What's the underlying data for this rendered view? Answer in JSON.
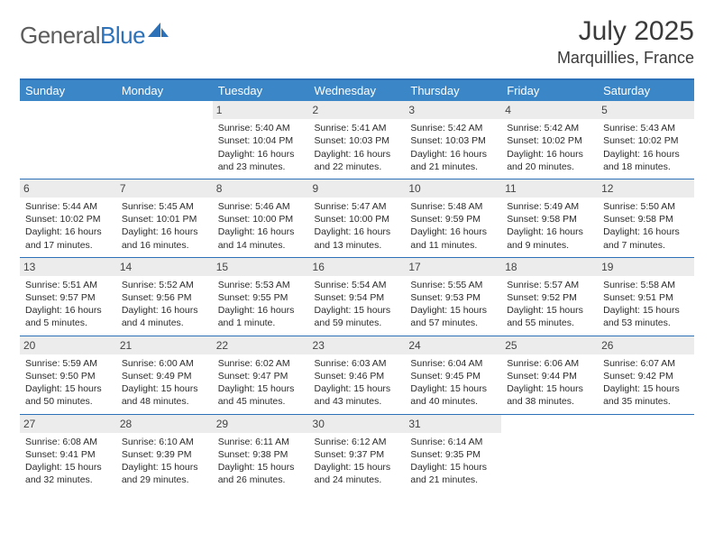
{
  "logo": {
    "text_gray": "General",
    "text_blue": "Blue"
  },
  "title": "July 2025",
  "location": "Marquillies, France",
  "colors": {
    "header_bg": "#3b86c7",
    "header_text": "#ffffff",
    "rule": "#2d72b8",
    "daynum_bg": "#ececec",
    "body_text": "#2b2b2b",
    "logo_gray": "#5c5c5c",
    "logo_blue": "#2d72b8"
  },
  "typography": {
    "title_fontsize": 30,
    "location_fontsize": 18,
    "weekday_fontsize": 13,
    "daynum_fontsize": 12,
    "cell_fontsize": 10.5,
    "font_family": "Arial"
  },
  "weekdays": [
    "Sunday",
    "Monday",
    "Tuesday",
    "Wednesday",
    "Thursday",
    "Friday",
    "Saturday"
  ],
  "weeks": [
    [
      null,
      null,
      {
        "n": "1",
        "sr": "Sunrise: 5:40 AM",
        "ss": "Sunset: 10:04 PM",
        "d1": "Daylight: 16 hours",
        "d2": "and 23 minutes."
      },
      {
        "n": "2",
        "sr": "Sunrise: 5:41 AM",
        "ss": "Sunset: 10:03 PM",
        "d1": "Daylight: 16 hours",
        "d2": "and 22 minutes."
      },
      {
        "n": "3",
        "sr": "Sunrise: 5:42 AM",
        "ss": "Sunset: 10:03 PM",
        "d1": "Daylight: 16 hours",
        "d2": "and 21 minutes."
      },
      {
        "n": "4",
        "sr": "Sunrise: 5:42 AM",
        "ss": "Sunset: 10:02 PM",
        "d1": "Daylight: 16 hours",
        "d2": "and 20 minutes."
      },
      {
        "n": "5",
        "sr": "Sunrise: 5:43 AM",
        "ss": "Sunset: 10:02 PM",
        "d1": "Daylight: 16 hours",
        "d2": "and 18 minutes."
      }
    ],
    [
      {
        "n": "6",
        "sr": "Sunrise: 5:44 AM",
        "ss": "Sunset: 10:02 PM",
        "d1": "Daylight: 16 hours",
        "d2": "and 17 minutes."
      },
      {
        "n": "7",
        "sr": "Sunrise: 5:45 AM",
        "ss": "Sunset: 10:01 PM",
        "d1": "Daylight: 16 hours",
        "d2": "and 16 minutes."
      },
      {
        "n": "8",
        "sr": "Sunrise: 5:46 AM",
        "ss": "Sunset: 10:00 PM",
        "d1": "Daylight: 16 hours",
        "d2": "and 14 minutes."
      },
      {
        "n": "9",
        "sr": "Sunrise: 5:47 AM",
        "ss": "Sunset: 10:00 PM",
        "d1": "Daylight: 16 hours",
        "d2": "and 13 minutes."
      },
      {
        "n": "10",
        "sr": "Sunrise: 5:48 AM",
        "ss": "Sunset: 9:59 PM",
        "d1": "Daylight: 16 hours",
        "d2": "and 11 minutes."
      },
      {
        "n": "11",
        "sr": "Sunrise: 5:49 AM",
        "ss": "Sunset: 9:58 PM",
        "d1": "Daylight: 16 hours",
        "d2": "and 9 minutes."
      },
      {
        "n": "12",
        "sr": "Sunrise: 5:50 AM",
        "ss": "Sunset: 9:58 PM",
        "d1": "Daylight: 16 hours",
        "d2": "and 7 minutes."
      }
    ],
    [
      {
        "n": "13",
        "sr": "Sunrise: 5:51 AM",
        "ss": "Sunset: 9:57 PM",
        "d1": "Daylight: 16 hours",
        "d2": "and 5 minutes."
      },
      {
        "n": "14",
        "sr": "Sunrise: 5:52 AM",
        "ss": "Sunset: 9:56 PM",
        "d1": "Daylight: 16 hours",
        "d2": "and 4 minutes."
      },
      {
        "n": "15",
        "sr": "Sunrise: 5:53 AM",
        "ss": "Sunset: 9:55 PM",
        "d1": "Daylight: 16 hours",
        "d2": "and 1 minute."
      },
      {
        "n": "16",
        "sr": "Sunrise: 5:54 AM",
        "ss": "Sunset: 9:54 PM",
        "d1": "Daylight: 15 hours",
        "d2": "and 59 minutes."
      },
      {
        "n": "17",
        "sr": "Sunrise: 5:55 AM",
        "ss": "Sunset: 9:53 PM",
        "d1": "Daylight: 15 hours",
        "d2": "and 57 minutes."
      },
      {
        "n": "18",
        "sr": "Sunrise: 5:57 AM",
        "ss": "Sunset: 9:52 PM",
        "d1": "Daylight: 15 hours",
        "d2": "and 55 minutes."
      },
      {
        "n": "19",
        "sr": "Sunrise: 5:58 AM",
        "ss": "Sunset: 9:51 PM",
        "d1": "Daylight: 15 hours",
        "d2": "and 53 minutes."
      }
    ],
    [
      {
        "n": "20",
        "sr": "Sunrise: 5:59 AM",
        "ss": "Sunset: 9:50 PM",
        "d1": "Daylight: 15 hours",
        "d2": "and 50 minutes."
      },
      {
        "n": "21",
        "sr": "Sunrise: 6:00 AM",
        "ss": "Sunset: 9:49 PM",
        "d1": "Daylight: 15 hours",
        "d2": "and 48 minutes."
      },
      {
        "n": "22",
        "sr": "Sunrise: 6:02 AM",
        "ss": "Sunset: 9:47 PM",
        "d1": "Daylight: 15 hours",
        "d2": "and 45 minutes."
      },
      {
        "n": "23",
        "sr": "Sunrise: 6:03 AM",
        "ss": "Sunset: 9:46 PM",
        "d1": "Daylight: 15 hours",
        "d2": "and 43 minutes."
      },
      {
        "n": "24",
        "sr": "Sunrise: 6:04 AM",
        "ss": "Sunset: 9:45 PM",
        "d1": "Daylight: 15 hours",
        "d2": "and 40 minutes."
      },
      {
        "n": "25",
        "sr": "Sunrise: 6:06 AM",
        "ss": "Sunset: 9:44 PM",
        "d1": "Daylight: 15 hours",
        "d2": "and 38 minutes."
      },
      {
        "n": "26",
        "sr": "Sunrise: 6:07 AM",
        "ss": "Sunset: 9:42 PM",
        "d1": "Daylight: 15 hours",
        "d2": "and 35 minutes."
      }
    ],
    [
      {
        "n": "27",
        "sr": "Sunrise: 6:08 AM",
        "ss": "Sunset: 9:41 PM",
        "d1": "Daylight: 15 hours",
        "d2": "and 32 minutes."
      },
      {
        "n": "28",
        "sr": "Sunrise: 6:10 AM",
        "ss": "Sunset: 9:39 PM",
        "d1": "Daylight: 15 hours",
        "d2": "and 29 minutes."
      },
      {
        "n": "29",
        "sr": "Sunrise: 6:11 AM",
        "ss": "Sunset: 9:38 PM",
        "d1": "Daylight: 15 hours",
        "d2": "and 26 minutes."
      },
      {
        "n": "30",
        "sr": "Sunrise: 6:12 AM",
        "ss": "Sunset: 9:37 PM",
        "d1": "Daylight: 15 hours",
        "d2": "and 24 minutes."
      },
      {
        "n": "31",
        "sr": "Sunrise: 6:14 AM",
        "ss": "Sunset: 9:35 PM",
        "d1": "Daylight: 15 hours",
        "d2": "and 21 minutes."
      },
      null,
      null
    ]
  ]
}
